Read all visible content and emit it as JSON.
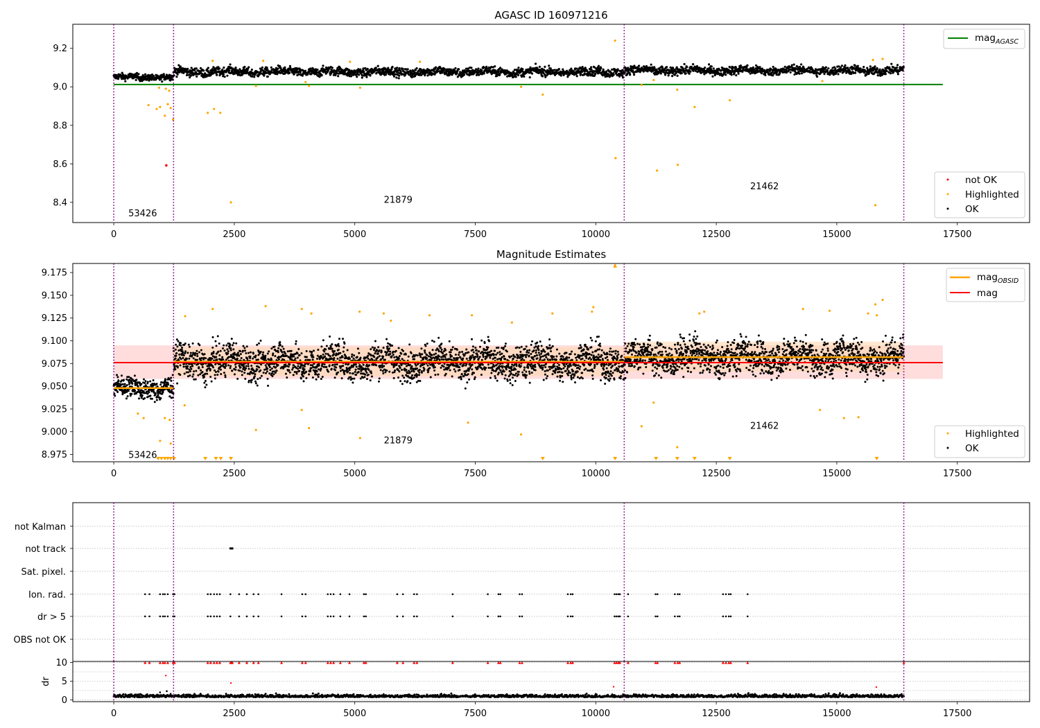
{
  "chart_data": [
    {
      "type": "scatter",
      "title": "AGASC ID 160971216",
      "xlim": [
        -850,
        19000
      ],
      "ylim": [
        8.295,
        9.325
      ],
      "x_ticks": [
        0,
        2500,
        5000,
        7500,
        10000,
        12500,
        15000,
        17500
      ],
      "y_ticks": [
        8.4,
        8.6,
        8.8,
        9.0,
        9.2
      ],
      "y_tick_labels": [
        "8.4",
        "8.6",
        "8.8",
        "9.0",
        "9.2"
      ],
      "grid": false,
      "obsid_boundaries": [
        0,
        1240,
        10590,
        16390
      ],
      "obsid_labels": [
        {
          "text": "53426",
          "x": 600,
          "y": 8.345
        },
        {
          "text": "21879",
          "x": 5900,
          "y": 8.415
        },
        {
          "text": "21462",
          "x": 13500,
          "y": 8.485
        }
      ],
      "lines": [
        {
          "name": "mag_AGASC",
          "color": "#008000",
          "x": [
            0,
            17200
          ],
          "y": [
            9.012,
            9.012
          ]
        }
      ],
      "legend_top": {
        "placement": "top-right",
        "entries": [
          {
            "label": "mag",
            "sub": "AGASC",
            "color": "#008000"
          }
        ]
      },
      "legend_bottom": {
        "placement": "lower-right",
        "entries": [
          {
            "label": "not OK",
            "color": "#ff0000"
          },
          {
            "label": "Highlighted",
            "color": "#ffa500"
          },
          {
            "label": "OK",
            "color": "#000000"
          }
        ]
      },
      "series": [
        {
          "name": "OK",
          "color": "#000000",
          "segments": [
            {
              "x_start": 0,
              "x_end": 1240,
              "center": 9.05,
              "spread": 0.012
            },
            {
              "x_start": 1240,
              "x_end": 10590,
              "center": 9.078,
              "spread": 0.016
            },
            {
              "x_start": 10590,
              "x_end": 16390,
              "center": 9.085,
              "spread": 0.016
            }
          ]
        },
        {
          "name": "Highlighted",
          "color": "#ffa500",
          "points": [
            [
              720,
              8.905
            ],
            [
              890,
              8.885
            ],
            [
              960,
              8.895
            ],
            [
              1060,
              8.85
            ],
            [
              1120,
              8.91
            ],
            [
              1180,
              8.89
            ],
            [
              1230,
              8.83
            ],
            [
              940,
              8.995
            ],
            [
              1080,
              8.99
            ],
            [
              1150,
              8.98
            ],
            [
              1950,
              8.865
            ],
            [
              2080,
              8.885
            ],
            [
              2210,
              8.865
            ],
            [
              2430,
              8.4
            ],
            [
              2950,
              9.005
            ],
            [
              3980,
              9.025
            ],
            [
              4050,
              9.005
            ],
            [
              5110,
              8.995
            ],
            [
              8450,
              9.0
            ],
            [
              8900,
              8.96
            ],
            [
              10400,
              9.24
            ],
            [
              10410,
              8.63
            ],
            [
              10950,
              9.01
            ],
            [
              11200,
              9.035
            ],
            [
              11270,
              8.565
            ],
            [
              11690,
              8.985
            ],
            [
              11700,
              8.595
            ],
            [
              12050,
              8.895
            ],
            [
              12780,
              8.93
            ],
            [
              14700,
              9.03
            ],
            [
              15800,
              8.385
            ],
            [
              15950,
              9.145
            ],
            [
              15750,
              9.14
            ],
            [
              2050,
              9.135
            ],
            [
              3100,
              9.135
            ],
            [
              4900,
              9.13
            ],
            [
              6350,
              9.13
            ]
          ]
        },
        {
          "name": "not OK",
          "color": "#ff0000",
          "points": [
            [
              1090,
              8.592
            ]
          ]
        }
      ]
    },
    {
      "type": "scatter",
      "title": "Magnitude Estimates",
      "xlim": [
        -850,
        19000
      ],
      "ylim": [
        8.967,
        9.185
      ],
      "x_ticks": [
        0,
        2500,
        5000,
        7500,
        10000,
        12500,
        15000,
        17500
      ],
      "y_ticks": [
        8.975,
        9.0,
        9.025,
        9.05,
        9.075,
        9.1,
        9.125,
        9.15,
        9.175
      ],
      "y_tick_labels": [
        "8.975",
        "9.000",
        "9.025",
        "9.050",
        "9.075",
        "9.100",
        "9.125",
        "9.150",
        "9.175"
      ],
      "grid": false,
      "obsid_boundaries": [
        0,
        1240,
        10590,
        16390
      ],
      "obsid_labels": [
        {
          "text": "53426",
          "x": 600,
          "y": 8.975
        },
        {
          "text": "21879",
          "x": 5900,
          "y": 8.991
        },
        {
          "text": "21462",
          "x": 13500,
          "y": 9.007
        }
      ],
      "bands": [
        {
          "name": "mag-std",
          "color": "#ffb3b3",
          "x": [
            0,
            17200
          ],
          "y": [
            9.058,
            9.095
          ]
        },
        {
          "name": "mag_OBSID-std",
          "color": "#ffd9b3",
          "segments": [
            {
              "x": [
                1240,
                10590
              ],
              "y": [
                9.061,
                9.093
              ]
            },
            {
              "x": [
                10590,
                16390
              ],
              "y": [
                9.066,
                9.099
              ]
            }
          ]
        }
      ],
      "lines": [
        {
          "name": "mag_OBSID",
          "color": "#ffa500",
          "segments": [
            {
              "x": [
                0,
                1240
              ],
              "y": 9.048
            },
            {
              "x": [
                1240,
                10590
              ],
              "y": 9.077
            },
            {
              "x": [
                10590,
                16390
              ],
              "y": 9.082
            }
          ]
        },
        {
          "name": "mag",
          "color": "#ff0000",
          "x": [
            0,
            17200
          ],
          "y": [
            9.076,
            9.076
          ]
        }
      ],
      "legend_top": {
        "placement": "top-right",
        "entries": [
          {
            "label": "mag",
            "sub": "OBSID",
            "color": "#ffa500"
          },
          {
            "label": "mag",
            "sub": "",
            "color": "#ff0000"
          }
        ]
      },
      "legend_bottom": {
        "placement": "lower-right",
        "entries": [
          {
            "label": "Highlighted",
            "color": "#ffa500"
          },
          {
            "label": "OK",
            "color": "#000000"
          }
        ]
      },
      "series": [
        {
          "name": "OK",
          "color": "#000000",
          "segments": [
            {
              "x_start": 0,
              "x_end": 1240,
              "center": 9.048,
              "spread": 0.008
            },
            {
              "x_start": 1240,
              "x_end": 10590,
              "center": 9.077,
              "spread": 0.013
            },
            {
              "x_start": 10590,
              "x_end": 16390,
              "center": 9.082,
              "spread": 0.013
            }
          ]
        },
        {
          "name": "Highlighted",
          "color": "#ffa500",
          "points": [
            [
              500,
              9.02
            ],
            [
              620,
              9.015
            ],
            [
              960,
              8.99
            ],
            [
              1060,
              9.015
            ],
            [
              1180,
              8.987
            ],
            [
              1160,
              9.013
            ],
            [
              1470,
              9.029
            ],
            [
              2950,
              9.002
            ],
            [
              3900,
              9.024
            ],
            [
              4050,
              9.004
            ],
            [
              5110,
              8.993
            ],
            [
              7350,
              9.01
            ],
            [
              8450,
              8.997
            ],
            [
              10950,
              9.006
            ],
            [
              11200,
              9.032
            ],
            [
              11690,
              8.983
            ],
            [
              14650,
              9.024
            ],
            [
              15150,
              9.015
            ],
            [
              15450,
              9.016
            ],
            [
              10400,
              9.183
            ],
            [
              3150,
              9.138
            ],
            [
              3900,
              9.135
            ],
            [
              4100,
              9.13
            ],
            [
              5100,
              9.132
            ],
            [
              5600,
              9.13
            ],
            [
              5750,
              9.122
            ],
            [
              6550,
              9.128
            ],
            [
              7430,
              9.128
            ],
            [
              8260,
              9.12
            ],
            [
              9100,
              9.13
            ],
            [
              9950,
              9.137
            ],
            [
              9920,
              9.132
            ],
            [
              12150,
              9.13
            ],
            [
              12250,
              9.132
            ],
            [
              14300,
              9.135
            ],
            [
              14850,
              9.133
            ],
            [
              15800,
              9.14
            ],
            [
              15950,
              9.145
            ],
            [
              15830,
              9.128
            ],
            [
              15650,
              9.13
            ],
            [
              2050,
              9.135
            ],
            [
              1480,
              9.127
            ]
          ]
        },
        {
          "name": "Highlighted (below range)",
          "color": "#ffa500",
          "points": [
            [
              920,
              8.969
            ],
            [
              990,
              8.969
            ],
            [
              1060,
              8.969
            ],
            [
              1120,
              8.969
            ],
            [
              1180,
              8.969
            ],
            [
              1250,
              8.969
            ],
            [
              1900,
              8.969
            ],
            [
              2120,
              8.969
            ],
            [
              2220,
              8.969
            ],
            [
              2430,
              8.969
            ],
            [
              8900,
              8.969
            ],
            [
              10400,
              8.969
            ],
            [
              11250,
              8.969
            ],
            [
              11690,
              8.969
            ],
            [
              12050,
              8.969
            ],
            [
              12780,
              8.969
            ],
            [
              15830,
              8.969
            ]
          ]
        }
      ]
    },
    {
      "type": "scatter",
      "title": "",
      "xlim": [
        -850,
        19000
      ],
      "grid": true,
      "category_axis": [
        "not Kalman",
        "not track",
        "Sat. pixel.",
        "Ion. rad.",
        "dr > 5",
        "OBS not OK"
      ],
      "obsid_boundaries": [
        0,
        1240,
        10590,
        16390
      ],
      "flags": {
        "not track": [
          [
            2400,
            2480
          ]
        ],
        "Ion. rad.": [
          650,
          740,
          960,
          1020,
          1060,
          1120,
          1230,
          1260,
          1950,
          2010,
          2080,
          2140,
          2200,
          2420,
          2600,
          2760,
          2900,
          3000,
          3480,
          3910,
          3980,
          4440,
          4500,
          4560,
          4700,
          4890,
          5190,
          5230,
          5880,
          6000,
          6230,
          6290,
          7030,
          7760,
          7980,
          8020,
          8420,
          8470,
          9420,
          9480,
          9520,
          10390,
          10430,
          10470,
          10500,
          10670,
          11240,
          11280,
          11640,
          11700,
          11740,
          12640,
          12700,
          12760,
          12800,
          13150
        ],
        "dr > 5": [
          650,
          740,
          960,
          1020,
          1060,
          1120,
          1230,
          1260,
          1950,
          2010,
          2080,
          2140,
          2200,
          2420,
          2600,
          2760,
          2900,
          3000,
          3480,
          3910,
          3980,
          4440,
          4500,
          4560,
          4700,
          4890,
          5190,
          5230,
          5880,
          6000,
          6230,
          6290,
          7030,
          7760,
          7980,
          8020,
          8420,
          8470,
          9420,
          9480,
          9520,
          10390,
          10430,
          10470,
          10500,
          10670,
          11240,
          11280,
          11640,
          11700,
          11740,
          12640,
          12700,
          12760,
          12800,
          13150
        ]
      },
      "dr_panel": {
        "ylabel": "dr",
        "ylim": [
          -0.5,
          10.3
        ],
        "y_ticks": [
          0,
          5,
          10
        ],
        "y_tick_labels": [
          "0",
          "5",
          "10"
        ],
        "x_ticks": [
          0,
          2500,
          5000,
          7500,
          10000,
          12500,
          15000,
          17500
        ],
        "baseline": {
          "center": 0.7,
          "spread": 0.45
        },
        "red_clipped_at_10": [
          650,
          740,
          960,
          1020,
          1060,
          1120,
          1230,
          1260,
          1950,
          2010,
          2080,
          2140,
          2200,
          2420,
          2440,
          2460,
          2600,
          2760,
          2900,
          3000,
          3480,
          3910,
          3980,
          4440,
          4500,
          4560,
          4700,
          4890,
          5190,
          5230,
          5880,
          6000,
          6230,
          6290,
          7030,
          7760,
          7980,
          8020,
          8420,
          8470,
          9420,
          9480,
          9520,
          10390,
          10430,
          10470,
          10500,
          10670,
          11240,
          11280,
          11640,
          11700,
          11740,
          12640,
          12700,
          12760,
          12800,
          13150,
          16390
        ],
        "red_points": [
          [
            1080,
            6.5
          ],
          [
            2430,
            4.5
          ],
          [
            10370,
            3.5
          ],
          [
            15820,
            3.4
          ]
        ],
        "black_outliers": [
          [
            960,
            2.0
          ],
          [
            1100,
            2.3
          ],
          [
            1180,
            1.6
          ],
          [
            2050,
            1.2
          ]
        ]
      }
    }
  ]
}
